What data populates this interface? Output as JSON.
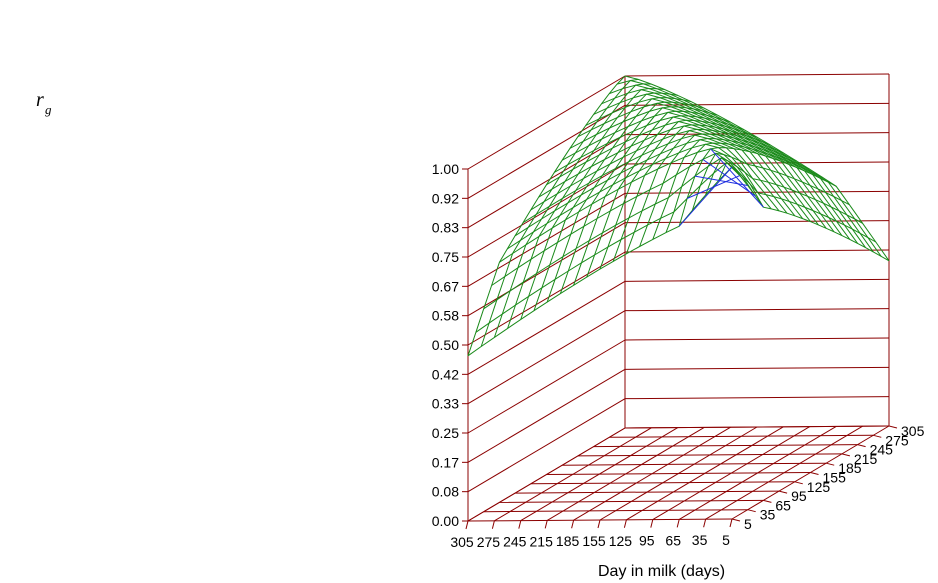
{
  "chart_data": {
    "type": "surface3d",
    "zlabel": "r",
    "zlabel_subscript": "g",
    "axis_title": "Day in milk (days)",
    "z_ticks": [
      "0.00",
      "0.08",
      "0.17",
      "0.25",
      "0.33",
      "0.42",
      "0.50",
      "0.58",
      "0.67",
      "0.75",
      "0.83",
      "0.92",
      "1.00"
    ],
    "x_ticks": [
      "305",
      "275",
      "245",
      "215",
      "185",
      "155",
      "125",
      "95",
      "65",
      "35",
      "5"
    ],
    "y_ticks": [
      "5",
      "35",
      "65",
      "95",
      "125",
      "155",
      "185",
      "215",
      "245",
      "275",
      "305"
    ],
    "zlim": [
      0,
      1
    ],
    "x_range_days": [
      5,
      305
    ],
    "y_range_days": [
      5,
      305
    ],
    "grid": true,
    "colors": {
      "grid": "#8b0000",
      "mesh": "#1a8a1a",
      "mesh_low": "#1f2fe0"
    },
    "surface": "genetic correlation between days in milk; equals 1.00 on the diagonal and decreases with distance between days, lowest (about 0.45-0.60) where early and late lactation days are paired"
  }
}
